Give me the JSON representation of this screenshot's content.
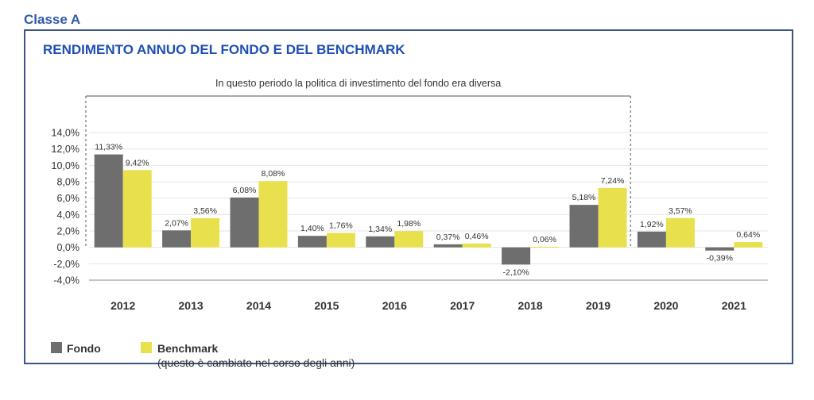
{
  "header": {
    "class_label": "Classe A"
  },
  "chart_data": {
    "type": "bar",
    "title": "RENDIMENTO ANNUO DEL FONDO E DEL BENCHMARK",
    "annotation": "In questo periodo la politica di investimento del fondo era diversa",
    "annotation_range": [
      "2012",
      "2019"
    ],
    "categories": [
      "2012",
      "2013",
      "2014",
      "2015",
      "2016",
      "2017",
      "2018",
      "2019",
      "2020",
      "2021"
    ],
    "series": [
      {
        "name": "Fondo",
        "color": "#6e6e6e",
        "values": [
          11.33,
          2.07,
          6.08,
          1.4,
          1.34,
          0.37,
          -2.1,
          5.18,
          1.92,
          -0.39
        ],
        "labels": [
          "11,33%",
          "2,07%",
          "6,08%",
          "1,40%",
          "1,34%",
          "0,37%",
          "-2,10%",
          "5,18%",
          "1,92%",
          "-0,39%"
        ]
      },
      {
        "name": "Benchmark",
        "color": "#e9e04e",
        "values": [
          9.42,
          3.56,
          8.08,
          1.76,
          1.98,
          0.46,
          0.06,
          7.24,
          3.57,
          0.64
        ],
        "labels": [
          "9,42%",
          "3,56%",
          "8,08%",
          "1,76%",
          "1,98%",
          "0,46%",
          "0,06%",
          "7,24%",
          "3,57%",
          "0,64%"
        ]
      }
    ],
    "ylim": [
      -4,
      14
    ],
    "yticks": [
      "14,0%",
      "12,0%",
      "10,0%",
      "8,0%",
      "6,0%",
      "4,0%",
      "2,0%",
      "0,0%",
      "-2,0%",
      "-4,0%"
    ],
    "grid": true,
    "legend": {
      "position": "bottom-left",
      "fondo": "Fondo",
      "benchmark": "Benchmark",
      "benchmark_note": "(questo è cambiato nel corso degli anni)"
    }
  }
}
